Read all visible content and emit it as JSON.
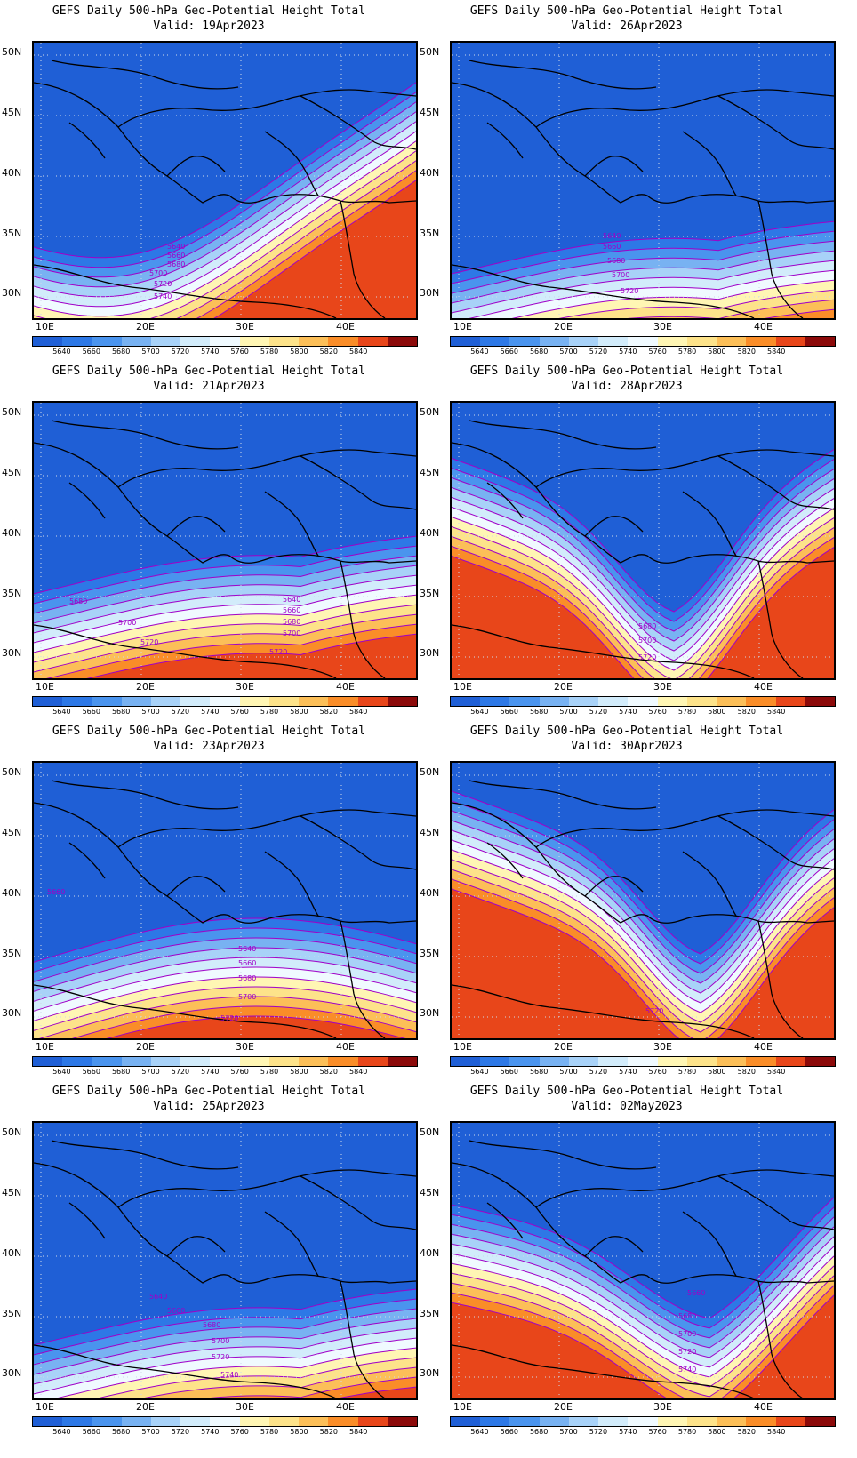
{
  "common": {
    "title": "GEFS Daily 500-hPa Geo-Potential Height Total",
    "lat_labels": [
      "50N",
      "45N",
      "40N",
      "35N",
      "30N"
    ],
    "lon_labels": [
      "10E",
      "20E",
      "30E",
      "40E"
    ],
    "colorbar_levels": [
      "5640",
      "5660",
      "5680",
      "5700",
      "5720",
      "5740",
      "5760",
      "5780",
      "5800",
      "5820",
      "5840"
    ],
    "colorbar_colors": [
      "#1f5fd6",
      "#2d78e6",
      "#4a94ee",
      "#78b2f2",
      "#a8d2f8",
      "#d2ecfb",
      "#f0faff",
      "#fff6b4",
      "#fde38a",
      "#fcbf58",
      "#fa8d28",
      "#e8461a",
      "#8c0a0a"
    ],
    "contour_color": "#a000c8"
  },
  "panels": [
    {
      "valid": "Valid: 19Apr2023",
      "contour_labels": [
        "5640",
        "5660",
        "5680",
        "5700",
        "5720",
        "5740"
      ]
    },
    {
      "valid": "Valid: 26Apr2023",
      "contour_labels": [
        "5640",
        "5660",
        "5680",
        "5700",
        "5720"
      ]
    },
    {
      "valid": "Valid: 21Apr2023",
      "contour_labels": [
        "5680",
        "5700",
        "5720",
        "5640",
        "5660",
        "5680",
        "5700",
        "5720"
      ]
    },
    {
      "valid": "Valid: 28Apr2023",
      "contour_labels": [
        "5680",
        "5700",
        "5720"
      ]
    },
    {
      "valid": "Valid: 23Apr2023",
      "contour_labels": [
        "5660",
        "5640",
        "5660",
        "5680",
        "5700",
        "5720"
      ]
    },
    {
      "valid": "Valid: 30Apr2023",
      "contour_labels": [
        "5720"
      ]
    },
    {
      "valid": "Valid: 25Apr2023",
      "contour_labels": [
        "5640",
        "5660",
        "5680",
        "5700",
        "5720",
        "5740"
      ]
    },
    {
      "valid": "Valid: 02May2023",
      "contour_labels": [
        "5660",
        "5680",
        "5700",
        "5720",
        "5740"
      ]
    }
  ]
}
